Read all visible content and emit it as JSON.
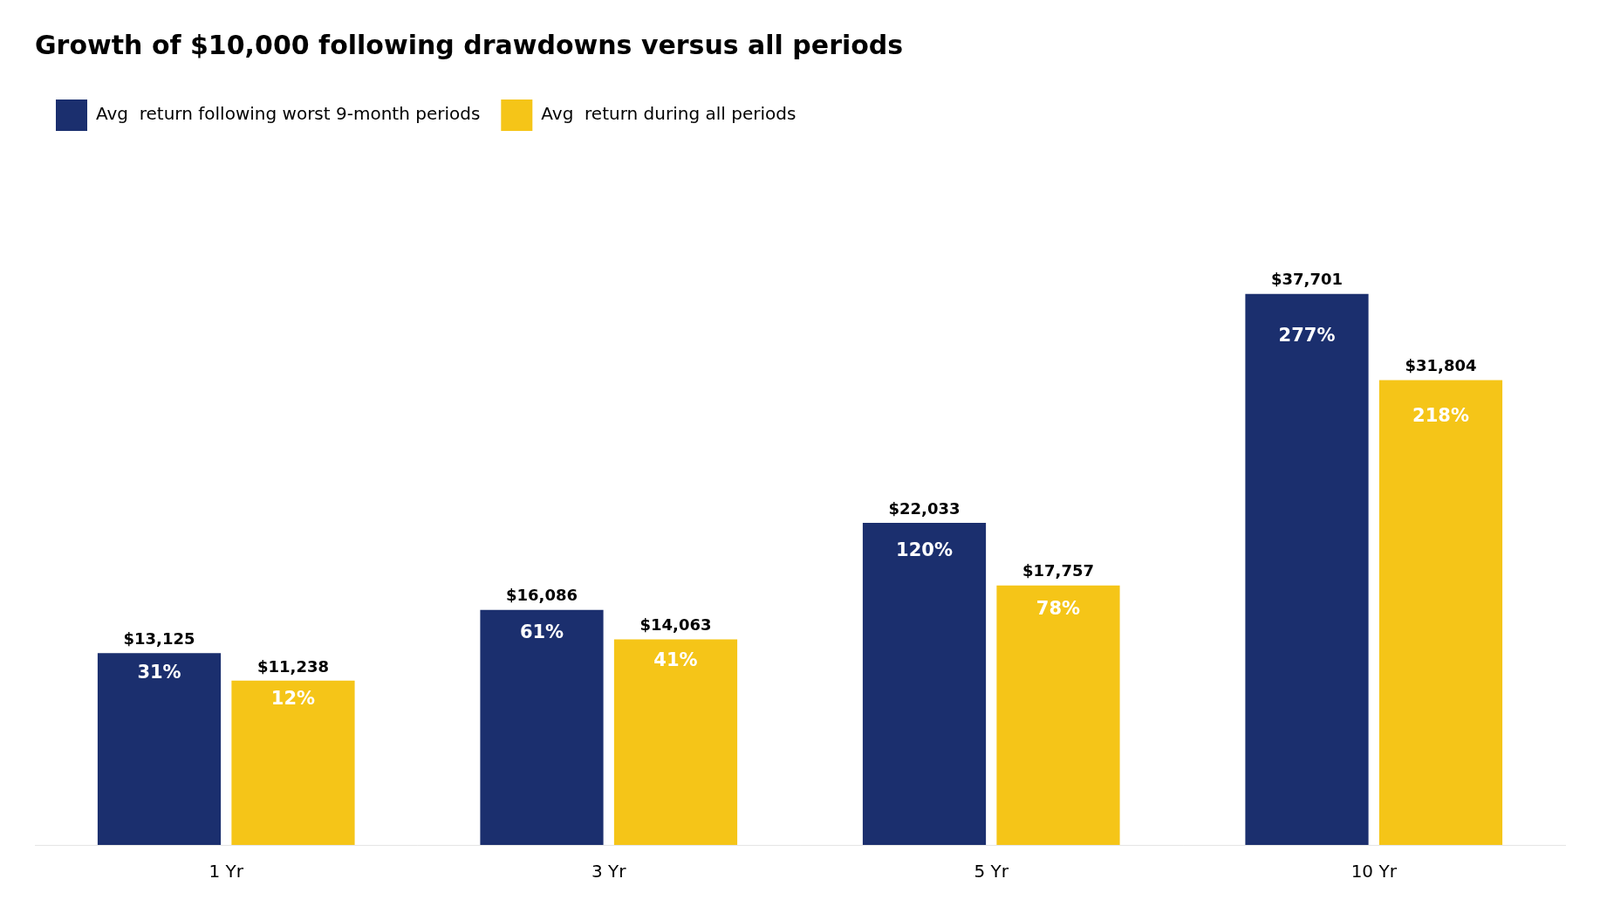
{
  "chart_data": {
    "type": "bar",
    "title": "Growth of $10,000 following drawdowns versus all periods",
    "categories": [
      "1 Yr",
      "3 Yr",
      "5 Yr",
      "10 Yr"
    ],
    "series": [
      {
        "name": "Avg  return following worst 9-month periods",
        "color": "#1b2f6e",
        "values": [
          13125,
          16086,
          22033,
          37701
        ],
        "value_labels": [
          "$13,125",
          "$16,086",
          "$22,033",
          "$37,701"
        ],
        "return_labels": [
          "31%",
          "61%",
          "120%",
          "277%"
        ]
      },
      {
        "name": "Avg  return during all periods",
        "color": "#f5c518",
        "values": [
          11238,
          14063,
          17757,
          31804
        ],
        "value_labels": [
          "$11,238",
          "$14,063",
          "$17,757",
          "$31,804"
        ],
        "return_labels": [
          "12%",
          "41%",
          "78%",
          "218%"
        ]
      }
    ],
    "ylim": [
      0,
      48257.28
    ],
    "grid": false,
    "legend": "upper left",
    "data_labels": true,
    "tick_labels": "x"
  }
}
